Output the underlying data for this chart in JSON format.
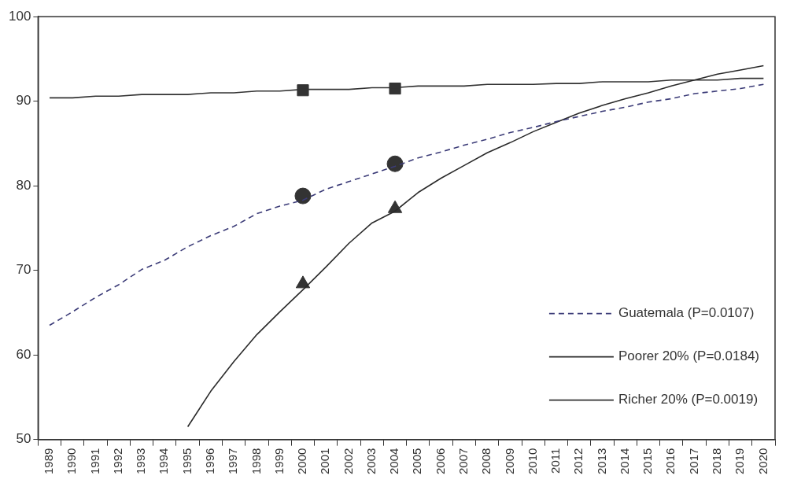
{
  "chart_data": {
    "type": "line",
    "categories": [
      "1989",
      "1990",
      "1991",
      "1992",
      "1993",
      "1994",
      "1995",
      "1996",
      "1997",
      "1998",
      "1999",
      "2000",
      "2001",
      "2002",
      "2003",
      "2004",
      "2005",
      "2006",
      "2007",
      "2008",
      "2009",
      "2010",
      "2011",
      "2012",
      "2013",
      "2014",
      "2015",
      "2016",
      "2017",
      "2018",
      "2019",
      "2020"
    ],
    "series": [
      {
        "name": "Guatemala (P=0.0107)",
        "color": "#3c3c78",
        "line_style": "dashed",
        "values": [
          63.5,
          65.1,
          66.8,
          68.3,
          70.1,
          71.2,
          72.8,
          74.1,
          75.2,
          76.7,
          77.6,
          78.3,
          79.6,
          80.5,
          81.4,
          82.3,
          83.3,
          84.0,
          84.8,
          85.5,
          86.3,
          86.9,
          87.6,
          88.2,
          88.8,
          89.3,
          89.9,
          90.3,
          90.9,
          91.2,
          91.5,
          92.0
        ]
      },
      {
        "name": "Poorer 20% (P=0.0184)",
        "color": "#2a2a2a",
        "line_style": "solid",
        "values": [
          null,
          null,
          null,
          null,
          null,
          null,
          51.5,
          55.7,
          59.2,
          62.4,
          65.1,
          67.7,
          70.4,
          73.2,
          75.6,
          77.0,
          79.2,
          80.9,
          82.4,
          83.9,
          85.1,
          86.4,
          87.5,
          88.6,
          89.5,
          90.3,
          91.0,
          91.8,
          92.5,
          93.2,
          93.7,
          94.2
        ]
      },
      {
        "name": "Richer 20% (P=0.0019)",
        "color": "#333333",
        "line_style": "solid",
        "values": [
          90.4,
          90.4,
          90.6,
          90.6,
          90.8,
          90.8,
          90.8,
          91.0,
          91.0,
          91.2,
          91.2,
          91.4,
          91.4,
          91.4,
          91.6,
          91.6,
          91.8,
          91.8,
          91.8,
          92.0,
          92.0,
          92.0,
          92.1,
          92.1,
          92.3,
          92.3,
          92.3,
          92.5,
          92.5,
          92.5,
          92.7,
          92.7
        ]
      },
      {
        "type": "scatter",
        "marker": "circle",
        "color": "#333333",
        "values": [
          null,
          null,
          null,
          null,
          null,
          null,
          null,
          null,
          null,
          null,
          null,
          78.8,
          null,
          null,
          null,
          82.6,
          null,
          null,
          null,
          null,
          null,
          null,
          null,
          null,
          null,
          null,
          null,
          null,
          null,
          null,
          null,
          null
        ]
      },
      {
        "type": "scatter",
        "marker": "triangle",
        "color": "#333333",
        "values": [
          null,
          null,
          null,
          null,
          null,
          null,
          null,
          null,
          null,
          null,
          null,
          68.4,
          null,
          null,
          null,
          77.3,
          null,
          null,
          null,
          null,
          null,
          null,
          null,
          null,
          null,
          null,
          null,
          null,
          null,
          null,
          null,
          null
        ]
      },
      {
        "type": "scatter",
        "marker": "square",
        "color": "#333333",
        "values": [
          null,
          null,
          null,
          null,
          null,
          null,
          null,
          null,
          null,
          null,
          null,
          91.3,
          null,
          null,
          null,
          91.5,
          null,
          null,
          null,
          null,
          null,
          null,
          null,
          null,
          null,
          null,
          null,
          null,
          null,
          null,
          null,
          null
        ]
      }
    ],
    "ylim": [
      50,
      100
    ],
    "yticks": [
      50,
      60,
      70,
      80,
      90,
      100
    ],
    "grid": false,
    "legend": "bottom right"
  }
}
